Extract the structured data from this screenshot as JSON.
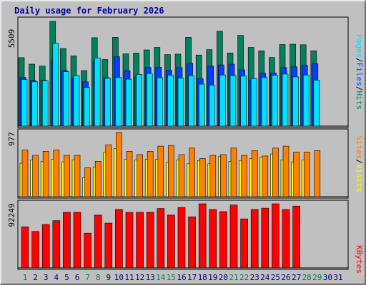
{
  "title": "Daily usage for February 2026",
  "colors": {
    "background": "#c0c0c0",
    "panel": "#c0c0c0",
    "hits": "#00805c",
    "files": "#0040ff",
    "pages": "#00e0ff",
    "visits": "#ffff00",
    "sites": "#ff8000",
    "kbytes": "#ff0000",
    "weekend_label": "#00805c",
    "weekday_label": "#000080"
  },
  "legend_right_top": {
    "pages_label": "Pages",
    "files_label": "Files",
    "hits_label": "Hits",
    "separator": "/"
  },
  "legend_right_mid": {
    "sites_label": "Sites",
    "visits_label": "Visits",
    "separator": "/"
  },
  "legend_right_bot": {
    "kbytes_label": "KBytes"
  },
  "chart_data": [
    {
      "type": "bar",
      "panel": "hits-files-pages",
      "ymax_label": "5509",
      "ylim": [
        0,
        5509
      ],
      "x": [
        "1",
        "2",
        "3",
        "4",
        "5",
        "6",
        "7",
        "8",
        "9",
        "10",
        "11",
        "12",
        "13",
        "14",
        "15",
        "16",
        "17",
        "18",
        "19",
        "20",
        "21",
        "22",
        "23",
        "24",
        "25",
        "26",
        "27",
        "28",
        "29",
        "30",
        "31"
      ],
      "series": [
        {
          "name": "Hits",
          "values": [
            3600,
            3260,
            3160,
            5509,
            4080,
            3690,
            2920,
            4650,
            3500,
            4670,
            3800,
            3840,
            4010,
            4140,
            3760,
            3790,
            4670,
            3740,
            4020,
            4990,
            3850,
            4770,
            4140,
            3960,
            3610,
            4290,
            4310,
            4280,
            3960,
            null,
            null
          ]
        },
        {
          "name": "Files",
          "values": [
            2570,
            2400,
            2410,
            3420,
            2920,
            2520,
            2330,
            3440,
            2550,
            3650,
            2920,
            2600,
            3090,
            3100,
            2940,
            3080,
            3310,
            2500,
            3150,
            3220,
            3260,
            2960,
            2430,
            2780,
            2800,
            3080,
            3120,
            3210,
            3280,
            null,
            null
          ]
        },
        {
          "name": "Pages",
          "values": [
            2450,
            2330,
            2390,
            4350,
            2860,
            2660,
            2030,
            3590,
            2520,
            2560,
            2470,
            2720,
            2770,
            2550,
            2680,
            2530,
            2650,
            2210,
            2160,
            2690,
            2660,
            2630,
            2500,
            2560,
            2680,
            2740,
            2590,
            2690,
            2420,
            null,
            null
          ]
        }
      ]
    },
    {
      "type": "bar",
      "panel": "visits-sites",
      "ymax_label": "977",
      "ylim": [
        0,
        977
      ],
      "x": [
        "1",
        "2",
        "3",
        "4",
        "5",
        "6",
        "7",
        "8",
        "9",
        "10",
        "11",
        "12",
        "13",
        "14",
        "15",
        "16",
        "17",
        "18",
        "19",
        "20",
        "21",
        "22",
        "23",
        "24",
        "25",
        "26",
        "27",
        "28",
        "29",
        "30",
        "31"
      ],
      "series": [
        {
          "name": "Visits",
          "values": [
            510,
            560,
            540,
            570,
            530,
            560,
            290,
            450,
            680,
            730,
            570,
            560,
            570,
            570,
            520,
            560,
            500,
            550,
            500,
            610,
            540,
            550,
            580,
            600,
            650,
            560,
            530,
            560,
            null,
            null,
            null
          ]
        },
        {
          "name": "Sites",
          "values": [
            710,
            630,
            690,
            710,
            630,
            630,
            440,
            540,
            790,
            977,
            690,
            640,
            690,
            770,
            780,
            640,
            740,
            580,
            630,
            640,
            740,
            630,
            700,
            620,
            740,
            770,
            680,
            680,
            700,
            null,
            null
          ]
        }
      ]
    },
    {
      "type": "bar",
      "panel": "kbytes",
      "ymax_label": "92249",
      "ylim": [
        0,
        92249
      ],
      "x": [
        "1",
        "2",
        "3",
        "4",
        "5",
        "6",
        "7",
        "8",
        "9",
        "10",
        "11",
        "12",
        "13",
        "14",
        "15",
        "16",
        "17",
        "18",
        "19",
        "20",
        "21",
        "22",
        "23",
        "24",
        "25",
        "26",
        "27",
        "28",
        "29",
        "30",
        "31"
      ],
      "series": [
        {
          "name": "KBytes",
          "values": [
            59000,
            52500,
            62500,
            68000,
            80000,
            80000,
            50000,
            76000,
            64500,
            84000,
            80000,
            80000,
            80000,
            85500,
            76000,
            87000,
            73500,
            92249,
            84000,
            81000,
            90500,
            70500,
            84000,
            86000,
            92249,
            84000,
            89000,
            null,
            null,
            null,
            null
          ]
        }
      ]
    }
  ],
  "x_axis": {
    "days": [
      "1",
      "2",
      "3",
      "4",
      "5",
      "6",
      "7",
      "8",
      "9",
      "10",
      "11",
      "12",
      "13",
      "14",
      "15",
      "16",
      "17",
      "18",
      "19",
      "20",
      "21",
      "22",
      "23",
      "24",
      "25",
      "26",
      "27",
      "28",
      "29",
      "30",
      "31"
    ],
    "weekend_days": [
      "1",
      "7",
      "8",
      "14",
      "15",
      "21",
      "22",
      "28",
      "29"
    ]
  }
}
